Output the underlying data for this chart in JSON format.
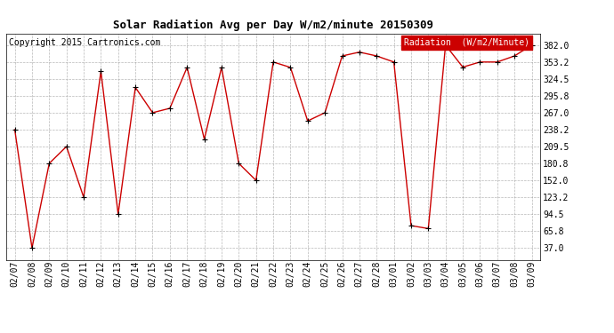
{
  "title": "Solar Radiation Avg per Day W/m2/minute 20150309",
  "copyright": "Copyright 2015 Cartronics.com",
  "legend_label": "Radiation  (W/m2/Minute)",
  "dates": [
    "02/07",
    "02/08",
    "02/09",
    "02/10",
    "02/11",
    "02/12",
    "02/13",
    "02/14",
    "02/15",
    "02/16",
    "02/17",
    "02/18",
    "02/19",
    "02/20",
    "02/21",
    "02/22",
    "02/23",
    "02/24",
    "02/25",
    "02/26",
    "02/27",
    "02/28",
    "03/01",
    "03/02",
    "03/03",
    "03/04",
    "03/05",
    "03/06",
    "03/07",
    "03/08",
    "03/09"
  ],
  "values": [
    238.2,
    37.0,
    180.8,
    209.5,
    123.2,
    337.5,
    94.5,
    310.0,
    267.0,
    274.5,
    344.0,
    222.0,
    344.0,
    180.8,
    152.0,
    353.2,
    344.0,
    253.0,
    267.0,
    363.5,
    370.0,
    363.5,
    353.2,
    75.0,
    70.0,
    382.0,
    344.5,
    353.2,
    353.2,
    363.5,
    382.0
  ],
  "line_color": "#cc0000",
  "marker_color": "#000000",
  "background_color": "#ffffff",
  "grid_color": "#999999",
  "yticks": [
    37.0,
    65.8,
    94.5,
    123.2,
    152.0,
    180.8,
    209.5,
    238.2,
    267.0,
    295.8,
    324.5,
    353.2,
    382.0
  ],
  "ylim": [
    17.0,
    402.0
  ],
  "title_fontsize": 9,
  "copyright_fontsize": 7,
  "tick_fontsize": 7,
  "legend_bg": "#cc0000",
  "legend_fg": "#ffffff",
  "legend_fontsize": 7
}
